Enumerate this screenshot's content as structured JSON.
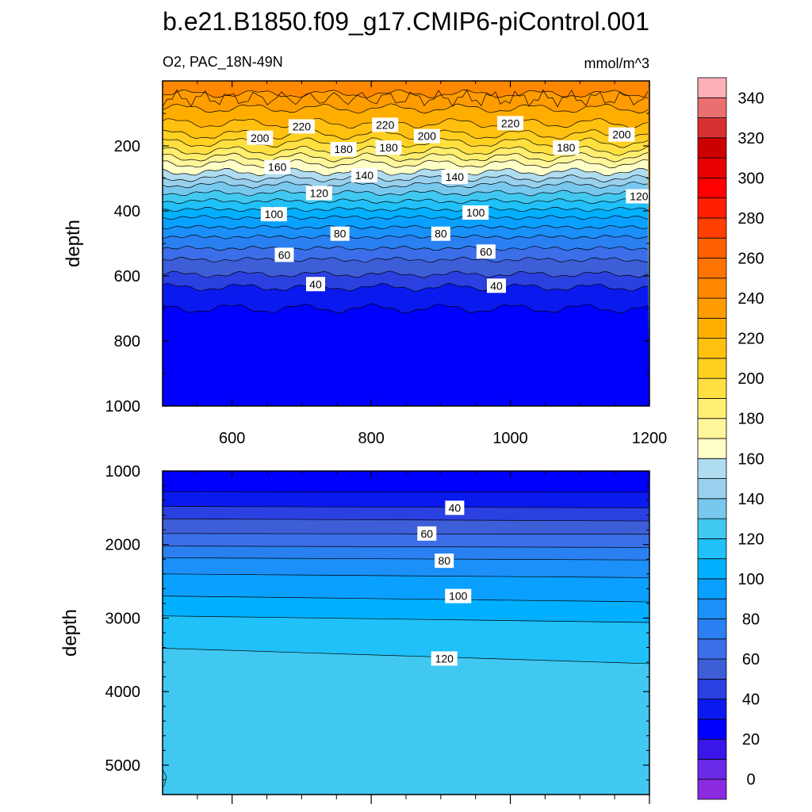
{
  "title": "b.e21.B1850.f09_g17.CMIP6-piControl.001",
  "subtitle_left": "O2, PAC_18N-49N",
  "units": "mmol/m^3",
  "chart_data": [
    {
      "type": "heatmap",
      "panel": "upper",
      "ylabel": "depth",
      "xlabel": "",
      "xlim": [
        500,
        1200
      ],
      "ylim": [
        1000,
        0
      ],
      "x_ticks": [
        "600",
        "800",
        "1000",
        "1200"
      ],
      "y_ticks": [
        "200",
        "400",
        "600",
        "800",
        "1000"
      ],
      "contour_depths": [
        {
          "level": 240,
          "depth": 40
        },
        {
          "level": 230,
          "depth": 85
        },
        {
          "level": 220,
          "depth": 130
        },
        {
          "level": 210,
          "depth": 165
        },
        {
          "level": 200,
          "depth": 190
        },
        {
          "level": 190,
          "depth": 215
        },
        {
          "level": 180,
          "depth": 235
        },
        {
          "level": 170,
          "depth": 255
        },
        {
          "level": 160,
          "depth": 280
        },
        {
          "level": 150,
          "depth": 300
        },
        {
          "level": 140,
          "depth": 320
        },
        {
          "level": 130,
          "depth": 345
        },
        {
          "level": 120,
          "depth": 370
        },
        {
          "level": 110,
          "depth": 395
        },
        {
          "level": 100,
          "depth": 420
        },
        {
          "level": 90,
          "depth": 450
        },
        {
          "level": 80,
          "depth": 480
        },
        {
          "level": 70,
          "depth": 515
        },
        {
          "level": 60,
          "depth": 550
        },
        {
          "level": 50,
          "depth": 595
        },
        {
          "level": 40,
          "depth": 635
        },
        {
          "level": 30,
          "depth": 700
        }
      ],
      "contour_labels": [
        {
          "x": 700,
          "depth": 140,
          "text": "220"
        },
        {
          "x": 820,
          "depth": 135,
          "text": "220"
        },
        {
          "x": 1000,
          "depth": 130,
          "text": "220"
        },
        {
          "x": 640,
          "depth": 175,
          "text": "200"
        },
        {
          "x": 880,
          "depth": 170,
          "text": "200"
        },
        {
          "x": 1160,
          "depth": 165,
          "text": "200"
        },
        {
          "x": 760,
          "depth": 210,
          "text": "180"
        },
        {
          "x": 825,
          "depth": 205,
          "text": "180"
        },
        {
          "x": 1080,
          "depth": 205,
          "text": "180"
        },
        {
          "x": 665,
          "depth": 265,
          "text": "160"
        },
        {
          "x": 790,
          "depth": 290,
          "text": "140"
        },
        {
          "x": 920,
          "depth": 295,
          "text": "140"
        },
        {
          "x": 1185,
          "depth": 355,
          "text": "120"
        },
        {
          "x": 725,
          "depth": 345,
          "text": "120"
        },
        {
          "x": 660,
          "depth": 410,
          "text": "100"
        },
        {
          "x": 950,
          "depth": 405,
          "text": "100"
        },
        {
          "x": 755,
          "depth": 470,
          "text": "80"
        },
        {
          "x": 900,
          "depth": 470,
          "text": "80"
        },
        {
          "x": 675,
          "depth": 535,
          "text": "60"
        },
        {
          "x": 965,
          "depth": 525,
          "text": "60"
        },
        {
          "x": 720,
          "depth": 625,
          "text": "40"
        },
        {
          "x": 980,
          "depth": 630,
          "text": "40"
        }
      ]
    },
    {
      "type": "heatmap",
      "panel": "lower",
      "ylabel": "depth",
      "xlabel": "",
      "xlim": [
        500,
        1200
      ],
      "ylim": [
        5400,
        1000
      ],
      "y_ticks": [
        "1000",
        "2000",
        "3000",
        "4000",
        "5000"
      ],
      "contour_depths": [
        {
          "level": 30,
          "depth_left": 1280,
          "depth_right": 1290
        },
        {
          "level": 40,
          "depth_left": 1480,
          "depth_right": 1500
        },
        {
          "level": 50,
          "depth_left": 1650,
          "depth_right": 1680
        },
        {
          "level": 60,
          "depth_left": 1850,
          "depth_right": 1860
        },
        {
          "level": 70,
          "depth_left": 2020,
          "depth_right": 2040
        },
        {
          "level": 80,
          "depth_left": 2180,
          "depth_right": 2210
        },
        {
          "level": 90,
          "depth_left": 2400,
          "depth_right": 2450
        },
        {
          "level": 100,
          "depth_left": 2700,
          "depth_right": 2780
        },
        {
          "level": 110,
          "depth_left": 2970,
          "depth_right": 3060
        },
        {
          "level": 120,
          "depth_left": 3410,
          "depth_right": 3620
        }
      ],
      "contour_labels": [
        {
          "x": 920,
          "depth": 1500,
          "text": "40"
        },
        {
          "x": 880,
          "depth": 1850,
          "text": "60"
        },
        {
          "x": 905,
          "depth": 2220,
          "text": "80"
        },
        {
          "x": 925,
          "depth": 2700,
          "text": "100"
        },
        {
          "x": 905,
          "depth": 3550,
          "text": "120"
        }
      ]
    }
  ],
  "colorbar": {
    "labels": [
      "0",
      "20",
      "40",
      "60",
      "80",
      "100",
      "120",
      "140",
      "160",
      "180",
      "200",
      "220",
      "240",
      "260",
      "280",
      "300",
      "320",
      "340"
    ],
    "colors": [
      "#8a2be2",
      "#6a2be8",
      "#3a16e8",
      "#0000ff",
      "#0a1aee",
      "#2a40e0",
      "#3e5ed8",
      "#3b6ee8",
      "#2a80f0",
      "#1a90f8",
      "#0aa0ff",
      "#00b0ff",
      "#20c0f8",
      "#40c8f0",
      "#78c8ee",
      "#98d0ee",
      "#b0dcf0",
      "#ffffc8",
      "#fff59a",
      "#ffee70",
      "#ffe040",
      "#ffd020",
      "#ffc010",
      "#ffae00",
      "#ff9c00",
      "#ff8800",
      "#ff7400",
      "#ff6000",
      "#ff4000",
      "#ff2000",
      "#ff0000",
      "#e80000",
      "#cc0000",
      "#d83030",
      "#e87070",
      "#ffb0b8"
    ]
  }
}
